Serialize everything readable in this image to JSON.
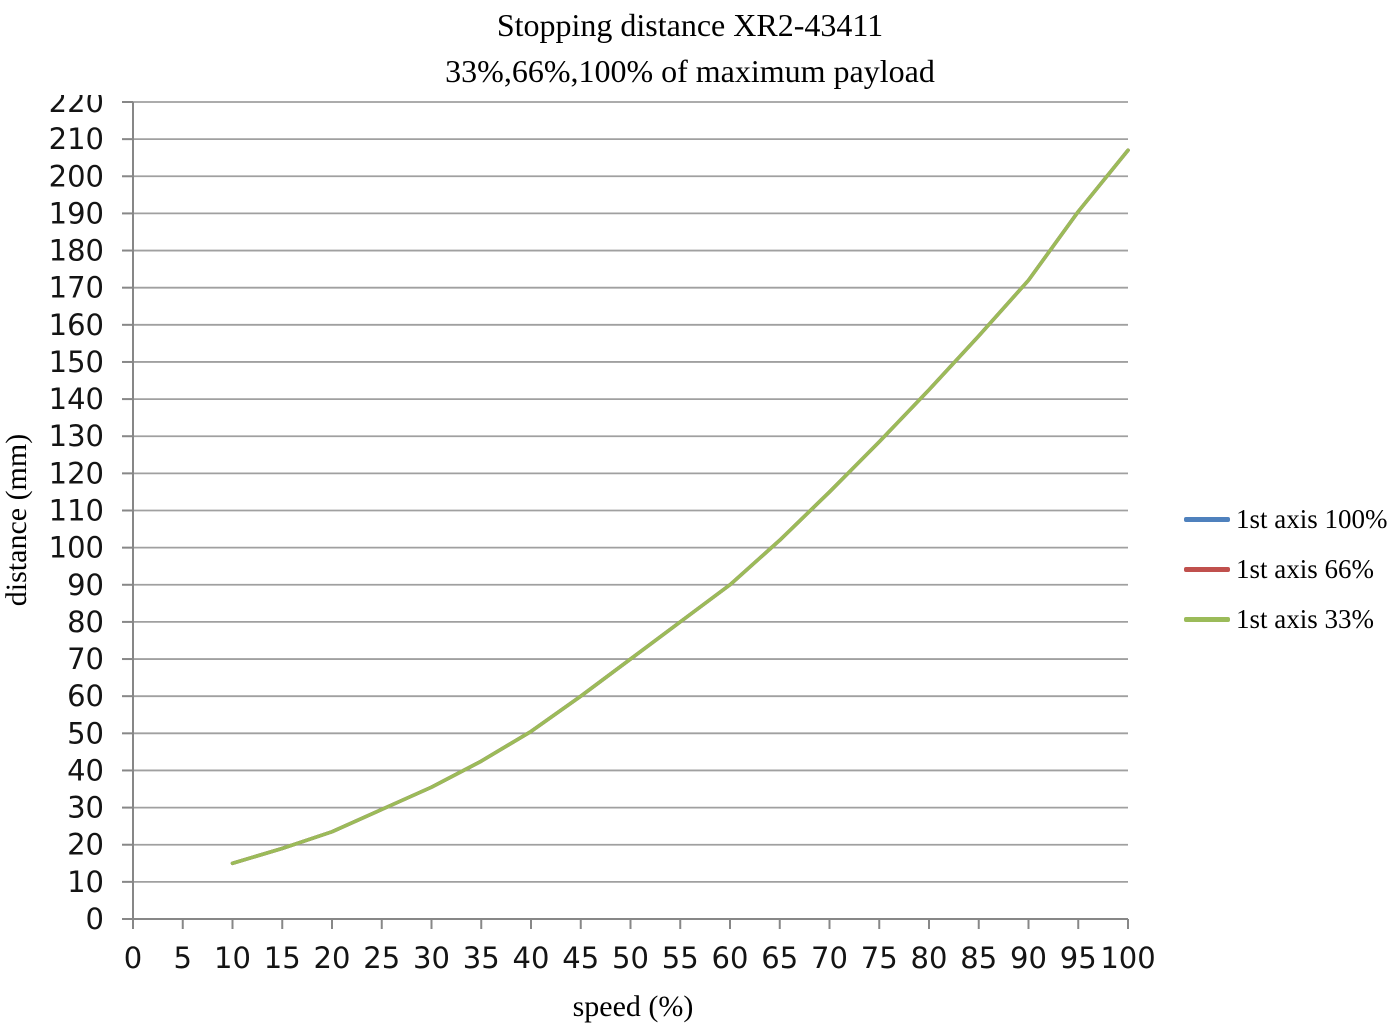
{
  "title": {
    "line1": "Stopping distance XR2-43411",
    "line2": "33%,66%,100% of maximum payload"
  },
  "axes": {
    "x": {
      "label": "speed (%)",
      "min": 0,
      "max": 100,
      "tick_step": 5
    },
    "y": {
      "label": "distance (mm)",
      "min": 0,
      "max": 220,
      "tick_step": 10
    }
  },
  "legend": [
    {
      "label": "1st axis 100%",
      "color": "#4F81BD"
    },
    {
      "label": "1st axis 66%",
      "color": "#C0504D"
    },
    {
      "label": "1st axis 33%",
      "color": "#9BBB59"
    }
  ],
  "colors": {
    "gridline": "#A0A0A0",
    "axis": "#878787",
    "text": "#141414",
    "background": "#FFFFFF"
  },
  "chart_data": {
    "type": "line",
    "title": "Stopping distance XR2-43411",
    "subtitle": "33%,66%,100% of maximum payload",
    "xlabel": "speed (%)",
    "ylabel": "distance (mm)",
    "xlim": [
      0,
      100
    ],
    "ylim": [
      0,
      220
    ],
    "x_tick_step": 5,
    "y_tick_step": 10,
    "grid": "horizontal",
    "legend_position": "right",
    "x": [
      10,
      15,
      20,
      25,
      30,
      35,
      40,
      45,
      50,
      55,
      60,
      65,
      70,
      75,
      80,
      85,
      90,
      95,
      100
    ],
    "series": [
      {
        "name": "1st axis 100%",
        "color": "#4F81BD",
        "values": [
          15,
          19,
          23.5,
          29.5,
          35.5,
          42.5,
          50.5,
          60,
          70,
          80,
          90,
          102,
          115,
          128.5,
          142.5,
          157,
          172,
          190.5,
          207
        ]
      },
      {
        "name": "1st axis 66%",
        "color": "#C0504D",
        "values": [
          15,
          19,
          23.5,
          29.5,
          35.5,
          42.5,
          50.5,
          60,
          70,
          80,
          90,
          102,
          115,
          128.5,
          142.5,
          157,
          172,
          190.5,
          207
        ]
      },
      {
        "name": "1st axis 33%",
        "color": "#9BBB59",
        "values": [
          15,
          19,
          23.5,
          29.5,
          35.5,
          42.5,
          50.5,
          60,
          70,
          80,
          90,
          102,
          115,
          128.5,
          142.5,
          157,
          172,
          190.5,
          207
        ]
      }
    ]
  }
}
